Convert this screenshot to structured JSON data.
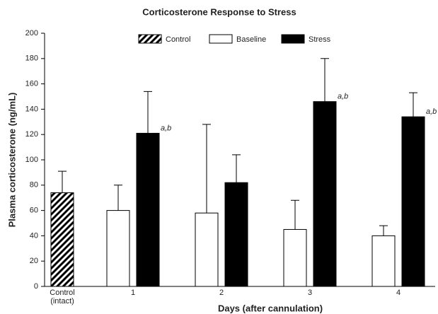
{
  "chart_data": {
    "type": "bar",
    "title": "Corticosterone Response to Stress",
    "x_label": "Days (after cannulation)",
    "y_label": "Plasma corticosterone (ng/mL)",
    "categories": [
      "Control\n(intact)",
      "1",
      "2",
      "3",
      "4"
    ],
    "series": [
      {
        "name": "Control",
        "color": "#000000",
        "hatch": true,
        "values": [
          74,
          null,
          null,
          null,
          null
        ],
        "errors": [
          17,
          null,
          null,
          null,
          null
        ]
      },
      {
        "name": "Baseline",
        "color": "#ffffff",
        "values": [
          null,
          60,
          58,
          45,
          40
        ],
        "errors": [
          null,
          20,
          70,
          23,
          8
        ]
      },
      {
        "name": "Stress",
        "color": "#000000",
        "values": [
          null,
          121,
          82,
          146,
          134
        ],
        "errors": [
          null,
          33,
          22,
          34,
          19
        ],
        "annotations": [
          null,
          "a,b",
          null,
          "a,b",
          "a,b"
        ]
      }
    ],
    "ylim": [
      0,
      200
    ],
    "yticks": [
      0,
      20,
      40,
      60,
      80,
      100,
      120,
      140,
      160,
      180,
      200
    ],
    "grid": false,
    "legend": "top"
  }
}
